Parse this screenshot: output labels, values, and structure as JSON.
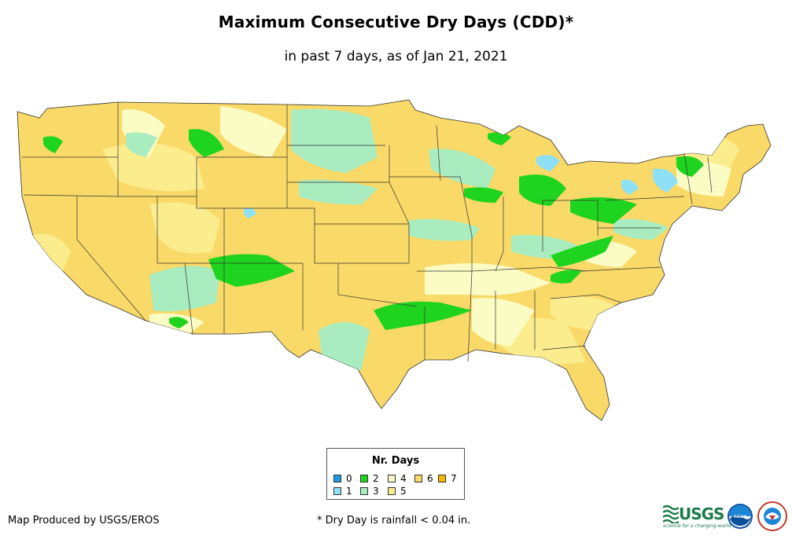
{
  "title": "Maximum Consecutive Dry Days (CDD)*",
  "subtitle": "in past 7 days, as of Jan 21, 2021",
  "legend": {
    "title": "Nr. Days",
    "items": [
      {
        "label": "0",
        "color": "#1e9be0"
      },
      {
        "label": "1",
        "color": "#8ee0f7"
      },
      {
        "label": "2",
        "color": "#1ed41e"
      },
      {
        "label": "3",
        "color": "#a8ecc0"
      },
      {
        "label": "4",
        "color": "#fbfbc4"
      },
      {
        "label": "5",
        "color": "#fbec8e"
      },
      {
        "label": "6",
        "color": "#f9d967"
      },
      {
        "label": "7",
        "color": "#f5b800"
      }
    ]
  },
  "footer": {
    "credit": "Map Produced by USGS/EROS",
    "note": "* Dry Day is rainfall < 0.04 in."
  },
  "logos": {
    "usgs": "USGS",
    "usgs_tagline": "science for a changing world",
    "noaa": "noaa"
  }
}
